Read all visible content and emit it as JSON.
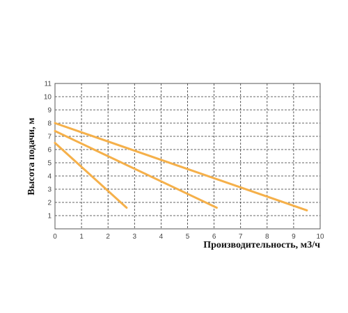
{
  "chart_data": {
    "type": "line",
    "xlabel": "Производительность, м3/ч",
    "ylabel": "Высота подачи, м",
    "xlim": [
      0,
      10
    ],
    "ylim": [
      0,
      11
    ],
    "x_ticks": [
      "0",
      "1",
      "2",
      "3",
      "4",
      "5",
      "6",
      "7",
      "8",
      "9",
      "10"
    ],
    "y_ticks": [
      "1",
      "2",
      "3",
      "4",
      "5",
      "6",
      "7",
      "8",
      "9",
      "10",
      "11"
    ],
    "grid": true,
    "series": [
      {
        "x": [
          0,
          2.7
        ],
        "y": [
          6.5,
          1.6
        ],
        "color": "#f5b04a"
      },
      {
        "x": [
          0,
          6.1
        ],
        "y": [
          7.4,
          1.6
        ],
        "color": "#f5b04a"
      },
      {
        "x": [
          0,
          9.5
        ],
        "y": [
          8.0,
          1.4
        ],
        "color": "#f5b04a"
      }
    ]
  }
}
